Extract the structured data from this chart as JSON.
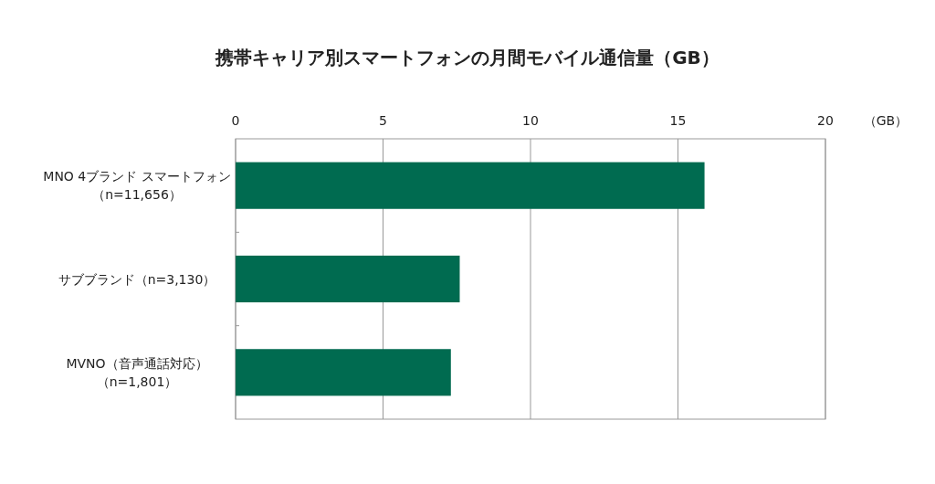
{
  "chart_data": {
    "type": "bar",
    "orientation": "horizontal",
    "title": "携帯キャリア別スマートフォンの月間モバイル通信量（GB）",
    "xlabel": "（GB）",
    "categories": [
      "MNO 4ブランド スマートフォン（n=11,656）",
      "サブブランド（n=3,130）",
      "MVNO（音声通話対応）（n=1,801）"
    ],
    "values": [
      15.9,
      7.6,
      7.3
    ],
    "color": "#006b50",
    "xlim": [
      0,
      20
    ],
    "xticks": [
      0,
      5,
      10,
      15,
      20
    ],
    "grid": "x"
  }
}
